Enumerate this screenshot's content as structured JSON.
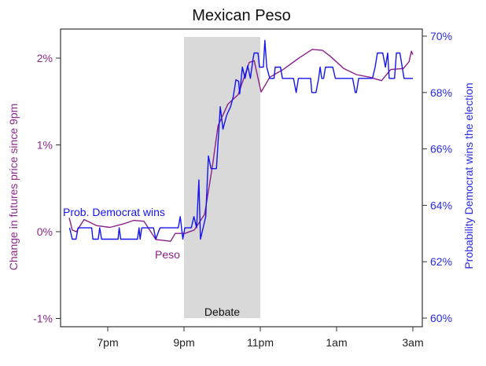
{
  "colors": {
    "peso": "#8b1f8b",
    "prob": "#1414f0",
    "debate_shade": "#d9d9d9",
    "left_axis_text": "#8b2a8b",
    "right_axis_text": "#2a2ae6"
  },
  "chart_data": {
    "type": "line",
    "title": "Mexican Peso",
    "xlabel": "",
    "x_units": "hours relative to 9pm",
    "xlim": [
      -3.05,
      6.0
    ],
    "x_ticks": [
      {
        "value": -2,
        "label": "7pm"
      },
      {
        "value": 0,
        "label": "9pm"
      },
      {
        "value": 2,
        "label": "11pm"
      },
      {
        "value": 4,
        "label": "1am"
      },
      {
        "value": 6,
        "label": "3am"
      }
    ],
    "ylabel_left": "Change in futures price since 9pm",
    "ylim_left": [
      -1,
      2.2
    ],
    "y_ticks_left": [
      {
        "value": -1,
        "label": "-1%"
      },
      {
        "value": 0,
        "label": "0%"
      },
      {
        "value": 1,
        "label": "1%"
      },
      {
        "value": 2,
        "label": "2%"
      }
    ],
    "ylabel_right": "Probability Democrat wins the election",
    "ylim_right": [
      60,
      70
    ],
    "y_ticks_right": [
      {
        "value": 60,
        "label": "60%"
      },
      {
        "value": 62,
        "label": "62%"
      },
      {
        "value": 64,
        "label": "64%"
      },
      {
        "value": 66,
        "label": "66%"
      },
      {
        "value": 68,
        "label": "68%"
      },
      {
        "value": 70,
        "label": "70%"
      }
    ],
    "shaded_region": {
      "label": "Debate",
      "x_start": 0,
      "x_end": 2
    },
    "series": [
      {
        "name": "Peso",
        "label": "Peso",
        "axis": "left",
        "x": [
          -3.01,
          -2.93,
          -2.82,
          -2.62,
          -2.29,
          -1.94,
          -1.59,
          -1.32,
          -1.05,
          -0.74,
          -0.35,
          -0.23,
          0.02,
          0.27,
          0.54,
          0.74,
          0.89,
          1.15,
          1.42,
          1.71,
          1.84,
          2.02,
          2.25,
          2.6,
          3.01,
          3.36,
          3.63,
          3.84,
          4.19,
          4.52,
          4.87,
          5.18,
          5.42,
          5.75,
          5.9,
          5.96,
          6.0
        ],
        "y": [
          0.16,
          0.02,
          0.0,
          0.14,
          0.07,
          0.05,
          0.09,
          0.13,
          0.12,
          -0.09,
          -0.11,
          -0.02,
          -0.02,
          0.02,
          0.2,
          0.74,
          1.22,
          1.47,
          1.58,
          1.95,
          1.97,
          1.61,
          1.78,
          1.87,
          2.0,
          2.1,
          2.09,
          2.02,
          1.88,
          1.81,
          1.78,
          1.74,
          1.87,
          1.88,
          1.96,
          2.08,
          2.04
        ]
      },
      {
        "name": "Prob. Democrat wins",
        "label": "Prob. Democrat wins",
        "axis": "right",
        "x": [
          -3.0,
          -2.93,
          -2.83,
          -2.78,
          -2.42,
          -2.39,
          -2.25,
          -2.21,
          -2.16,
          -1.73,
          -1.7,
          -1.66,
          -1.22,
          -1.18,
          -1.15,
          -1.11,
          -0.8,
          -0.74,
          -0.63,
          -0.15,
          -0.1,
          -0.03,
          0.02,
          0.19,
          0.26,
          0.33,
          0.39,
          0.43,
          0.5,
          0.57,
          0.64,
          0.71,
          0.85,
          0.95,
          1.02,
          1.12,
          1.22,
          1.29,
          1.36,
          1.43,
          1.46,
          1.53,
          1.6,
          1.67,
          1.74,
          1.81,
          1.84,
          1.94,
          1.98,
          2.08,
          2.12,
          2.17,
          2.25,
          2.36,
          2.39,
          2.53,
          2.58,
          2.87,
          2.94,
          3.0,
          3.32,
          3.35,
          3.46,
          3.53,
          3.57,
          3.61,
          3.66,
          3.71,
          3.9,
          3.97,
          4.42,
          4.49,
          4.52,
          4.58,
          4.94,
          5.01,
          5.07,
          5.21,
          5.28,
          5.34,
          5.38,
          5.52,
          5.57,
          5.66,
          5.77,
          6.0
        ],
        "y": [
          63.2,
          62.8,
          62.8,
          63.2,
          63.2,
          62.8,
          62.8,
          63.2,
          62.8,
          62.8,
          63.2,
          62.8,
          62.8,
          63.2,
          62.8,
          63.2,
          63.2,
          62.8,
          63.2,
          63.2,
          63.6,
          62.8,
          63.2,
          63.2,
          63.6,
          63.2,
          64.9,
          62.8,
          63.2,
          63.6,
          65.75,
          65.3,
          65.3,
          67.5,
          66.7,
          67.2,
          67.5,
          67.85,
          68.45,
          68.4,
          67.95,
          68.9,
          68.5,
          68.95,
          68.5,
          69.2,
          69.4,
          69.4,
          68.9,
          68.9,
          69.85,
          68.9,
          68.5,
          68.5,
          68.9,
          68.9,
          68.5,
          68.5,
          68.0,
          68.5,
          68.5,
          68.0,
          68.0,
          68.5,
          68.9,
          68.5,
          68.5,
          68.9,
          68.9,
          68.5,
          68.5,
          68.0,
          68.0,
          68.5,
          68.5,
          68.9,
          69.4,
          69.4,
          68.9,
          69.4,
          68.5,
          68.5,
          69.4,
          69.4,
          68.5,
          68.5
        ]
      }
    ]
  }
}
